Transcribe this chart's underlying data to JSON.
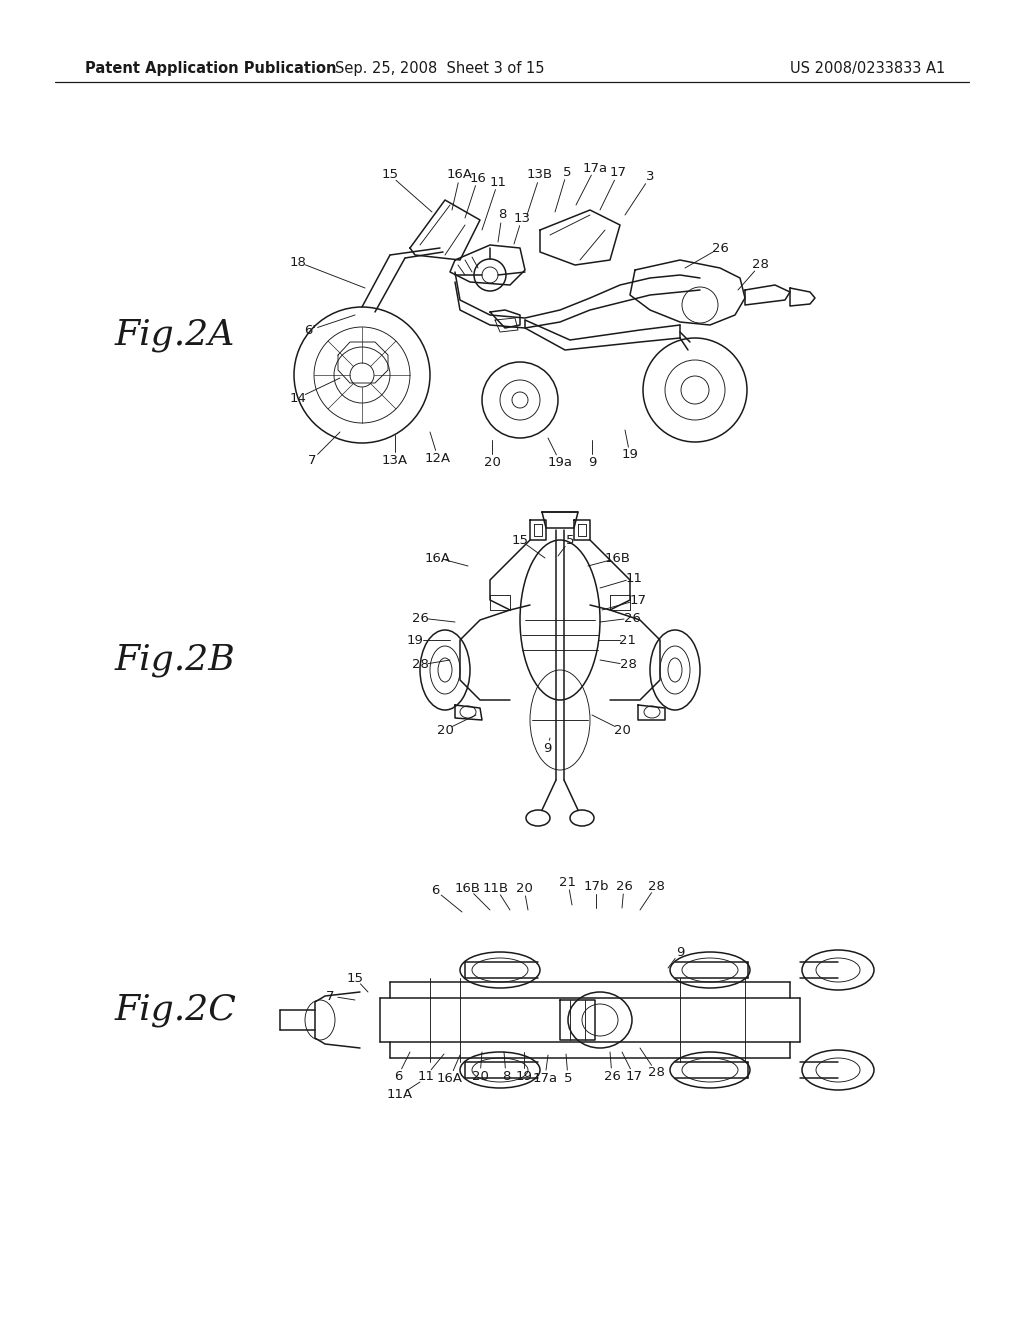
{
  "header_left": "Patent Application Publication",
  "header_mid": "Sep. 25, 2008  Sheet 3 of 15",
  "header_right": "US 2008/0233833 A1",
  "background_color": "#ffffff",
  "line_color": "#1a1a1a",
  "header_fontsize": 10.5,
  "fig_label_fontsize": 26,
  "label_fontsize": 9.5
}
